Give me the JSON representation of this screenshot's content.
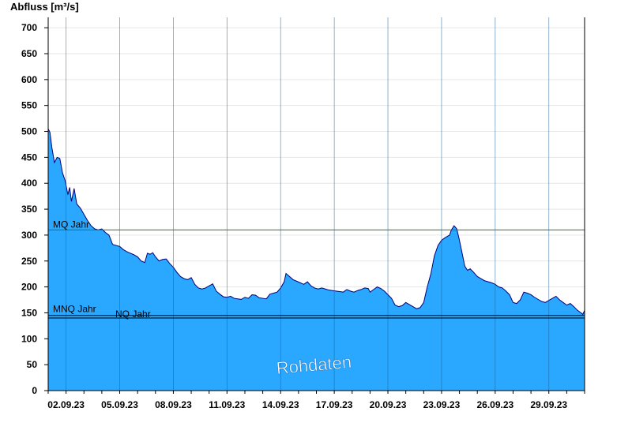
{
  "chart_data": {
    "type": "area",
    "title": "",
    "ylabel": "Abfluss [m³/s]",
    "xlabel": "",
    "ylim": [
      0,
      720
    ],
    "xlim": [
      1,
      31
    ],
    "y_ticks": [
      0,
      50,
      100,
      150,
      200,
      250,
      300,
      350,
      400,
      450,
      500,
      550,
      600,
      650,
      700
    ],
    "x_ticks": [
      {
        "day": 2,
        "label": "02.09.23"
      },
      {
        "day": 5,
        "label": "05.09.23"
      },
      {
        "day": 8,
        "label": "08.09.23"
      },
      {
        "day": 11,
        "label": "11.09.23"
      },
      {
        "day": 14,
        "label": "14.09.23"
      },
      {
        "day": 17,
        "label": "17.09.23"
      },
      {
        "day": 20,
        "label": "20.09.23"
      },
      {
        "day": 23,
        "label": "23.09.23"
      },
      {
        "day": 26,
        "label": "26.09.23"
      },
      {
        "day": 29,
        "label": "29.09.23"
      }
    ],
    "series": [
      {
        "name": "",
        "points": [
          [
            1.0,
            505
          ],
          [
            1.1,
            498
          ],
          [
            1.2,
            470
          ],
          [
            1.35,
            440
          ],
          [
            1.5,
            450
          ],
          [
            1.65,
            448
          ],
          [
            1.8,
            420
          ],
          [
            1.95,
            405
          ],
          [
            2.1,
            378
          ],
          [
            2.2,
            392
          ],
          [
            2.3,
            365
          ],
          [
            2.45,
            390
          ],
          [
            2.6,
            360
          ],
          [
            2.8,
            352
          ],
          [
            3.0,
            340
          ],
          [
            3.2,
            328
          ],
          [
            3.4,
            318
          ],
          [
            3.6,
            312
          ],
          [
            3.8,
            310
          ],
          [
            4.0,
            312
          ],
          [
            4.2,
            305
          ],
          [
            4.4,
            300
          ],
          [
            4.6,
            282
          ],
          [
            4.8,
            280
          ],
          [
            5.0,
            278
          ],
          [
            5.2,
            272
          ],
          [
            5.4,
            268
          ],
          [
            5.6,
            265
          ],
          [
            5.8,
            262
          ],
          [
            6.0,
            258
          ],
          [
            6.2,
            250
          ],
          [
            6.4,
            247
          ],
          [
            6.55,
            265
          ],
          [
            6.7,
            263
          ],
          [
            6.85,
            266
          ],
          [
            7.0,
            258
          ],
          [
            7.2,
            250
          ],
          [
            7.4,
            253
          ],
          [
            7.6,
            254
          ],
          [
            7.8,
            245
          ],
          [
            8.0,
            238
          ],
          [
            8.2,
            228
          ],
          [
            8.4,
            220
          ],
          [
            8.6,
            216
          ],
          [
            8.8,
            214
          ],
          [
            9.0,
            218
          ],
          [
            9.2,
            205
          ],
          [
            9.4,
            198
          ],
          [
            9.6,
            196
          ],
          [
            9.8,
            198
          ],
          [
            10.0,
            202
          ],
          [
            10.2,
            206
          ],
          [
            10.4,
            192
          ],
          [
            10.6,
            186
          ],
          [
            10.8,
            181
          ],
          [
            11.0,
            180
          ],
          [
            11.2,
            182
          ],
          [
            11.4,
            178
          ],
          [
            11.6,
            177
          ],
          [
            11.8,
            176
          ],
          [
            12.0,
            180
          ],
          [
            12.2,
            178
          ],
          [
            12.4,
            185
          ],
          [
            12.6,
            184
          ],
          [
            12.8,
            179
          ],
          [
            13.0,
            178
          ],
          [
            13.2,
            177
          ],
          [
            13.4,
            186
          ],
          [
            13.6,
            188
          ],
          [
            13.8,
            190
          ],
          [
            14.0,
            198
          ],
          [
            14.2,
            210
          ],
          [
            14.3,
            226
          ],
          [
            14.5,
            220
          ],
          [
            14.7,
            214
          ],
          [
            14.9,
            211
          ],
          [
            15.1,
            208
          ],
          [
            15.3,
            205
          ],
          [
            15.5,
            210
          ],
          [
            15.7,
            202
          ],
          [
            15.9,
            198
          ],
          [
            16.1,
            196
          ],
          [
            16.3,
            198
          ],
          [
            16.5,
            196
          ],
          [
            16.7,
            194
          ],
          [
            16.9,
            193
          ],
          [
            17.1,
            192
          ],
          [
            17.3,
            191
          ],
          [
            17.5,
            190
          ],
          [
            17.7,
            195
          ],
          [
            17.9,
            192
          ],
          [
            18.1,
            190
          ],
          [
            18.3,
            193
          ],
          [
            18.5,
            195
          ],
          [
            18.7,
            198
          ],
          [
            18.9,
            197
          ],
          [
            19.0,
            190
          ],
          [
            19.2,
            195
          ],
          [
            19.4,
            200
          ],
          [
            19.6,
            197
          ],
          [
            19.8,
            192
          ],
          [
            20.0,
            185
          ],
          [
            20.2,
            178
          ],
          [
            20.4,
            165
          ],
          [
            20.6,
            162
          ],
          [
            20.8,
            164
          ],
          [
            21.0,
            170
          ],
          [
            21.2,
            166
          ],
          [
            21.4,
            162
          ],
          [
            21.6,
            158
          ],
          [
            21.8,
            160
          ],
          [
            22.0,
            170
          ],
          [
            22.2,
            200
          ],
          [
            22.4,
            225
          ],
          [
            22.6,
            260
          ],
          [
            22.8,
            280
          ],
          [
            23.0,
            290
          ],
          [
            23.2,
            295
          ],
          [
            23.35,
            298
          ],
          [
            23.45,
            300
          ],
          [
            23.55,
            310
          ],
          [
            23.7,
            318
          ],
          [
            23.85,
            312
          ],
          [
            24.0,
            290
          ],
          [
            24.15,
            265
          ],
          [
            24.3,
            240
          ],
          [
            24.45,
            232
          ],
          [
            24.6,
            235
          ],
          [
            24.8,
            228
          ],
          [
            25.0,
            220
          ],
          [
            25.2,
            216
          ],
          [
            25.4,
            212
          ],
          [
            25.6,
            210
          ],
          [
            25.8,
            208
          ],
          [
            26.0,
            205
          ],
          [
            26.2,
            200
          ],
          [
            26.4,
            198
          ],
          [
            26.6,
            192
          ],
          [
            26.8,
            185
          ],
          [
            27.0,
            170
          ],
          [
            27.2,
            168
          ],
          [
            27.4,
            175
          ],
          [
            27.6,
            190
          ],
          [
            27.8,
            188
          ],
          [
            28.0,
            185
          ],
          [
            28.2,
            180
          ],
          [
            28.4,
            176
          ],
          [
            28.6,
            172
          ],
          [
            28.8,
            170
          ],
          [
            29.0,
            174
          ],
          [
            29.2,
            178
          ],
          [
            29.4,
            182
          ],
          [
            29.6,
            175
          ],
          [
            29.8,
            170
          ],
          [
            30.0,
            165
          ],
          [
            30.2,
            168
          ],
          [
            30.4,
            162
          ],
          [
            30.6,
            155
          ],
          [
            30.8,
            150
          ],
          [
            30.9,
            147
          ],
          [
            31.0,
            155
          ]
        ]
      }
    ],
    "reference_lines": [
      {
        "label": "MQ Jahr",
        "value": 310,
        "color": "#2a7a1e"
      },
      {
        "label": "MNQ Jahr",
        "value": 145,
        "color": "#000000"
      },
      {
        "label": "NQ Jahr",
        "value": 140,
        "color": "#000000"
      }
    ],
    "watermark": "Rohdaten",
    "colors": {
      "fill": "#2aa8ff",
      "line": "#00007a"
    },
    "grid": true
  }
}
